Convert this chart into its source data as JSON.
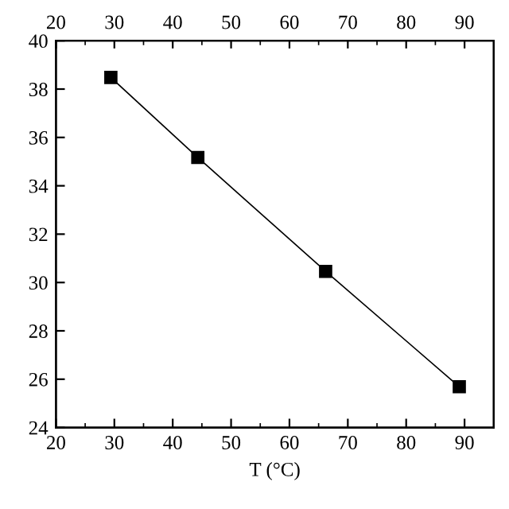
{
  "chart_data": {
    "type": "line",
    "xlabel": "T (°C)",
    "x": [
      29.4,
      44.3,
      66.2,
      89.1
    ],
    "series": [
      {
        "color": "#000000",
        "values": [
          38.48,
          35.17,
          30.46,
          25.69
        ]
      }
    ],
    "marker": "square",
    "line_style": "solid",
    "xlim": [
      20,
      95
    ],
    "xticks": [
      20,
      30,
      40,
      50,
      60,
      70,
      80,
      90
    ],
    "x2lim": [
      20,
      95
    ],
    "x2ticks": [
      20,
      30,
      40,
      50,
      60,
      70,
      80,
      90
    ],
    "ylim": [
      24,
      40
    ],
    "yticks": [
      24,
      26,
      28,
      30,
      32,
      34,
      36,
      38,
      40
    ],
    "grid": false
  }
}
